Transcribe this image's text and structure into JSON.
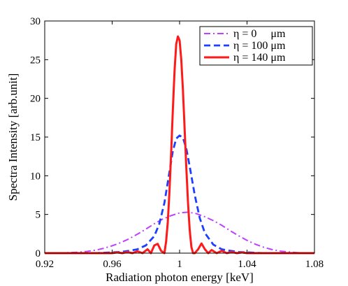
{
  "chart_data": {
    "type": "line",
    "title": "",
    "xlabel": "Radiation photon energy [keV]",
    "ylabel": "Spectra Intensity [arb.unit]",
    "xlim": [
      0.92,
      1.08
    ],
    "ylim": [
      0,
      30
    ],
    "x_ticks": [
      0.92,
      0.96,
      1.0,
      1.04,
      1.08
    ],
    "x_tick_labels": [
      "0.92",
      "0.96",
      "1",
      "1.04",
      "1.08"
    ],
    "y_ticks": [
      0,
      5,
      10,
      15,
      20,
      25,
      30
    ],
    "y_tick_labels": [
      "0",
      "5",
      "10",
      "15",
      "20",
      "25",
      "30"
    ],
    "grid": false,
    "legend_position": "top-right",
    "series": [
      {
        "name": "η = 0     μm",
        "color": "#bf40ff",
        "dash": "dashdot",
        "x": [
          0.92,
          0.93,
          0.94,
          0.945,
          0.95,
          0.955,
          0.96,
          0.965,
          0.97,
          0.975,
          0.98,
          0.985,
          0.99,
          0.995,
          1.0,
          1.005,
          1.01,
          1.015,
          1.02,
          1.025,
          1.03,
          1.035,
          1.04,
          1.045,
          1.05,
          1.055,
          1.06,
          1.07,
          1.08
        ],
        "y": [
          0.0,
          0.03,
          0.12,
          0.22,
          0.38,
          0.62,
          0.95,
          1.35,
          1.85,
          2.45,
          3.1,
          3.8,
          4.4,
          4.85,
          5.2,
          5.3,
          5.1,
          4.7,
          4.2,
          3.6,
          2.9,
          2.25,
          1.65,
          1.15,
          0.75,
          0.45,
          0.25,
          0.06,
          0.0
        ]
      },
      {
        "name": "η = 100 μm",
        "color": "#1f3fff",
        "dash": "dashed",
        "x": [
          0.92,
          0.95,
          0.96,
          0.965,
          0.97,
          0.975,
          0.98,
          0.985,
          0.988,
          0.991,
          0.994,
          0.996,
          0.998,
          1.0,
          1.002,
          1.004,
          1.006,
          1.009,
          1.012,
          1.015,
          1.02,
          1.025,
          1.03,
          1.035,
          1.04,
          1.05,
          1.08
        ],
        "y": [
          0.0,
          0.0,
          0.1,
          0.15,
          0.3,
          0.5,
          1.0,
          2.2,
          3.8,
          6.5,
          10.5,
          13.2,
          14.8,
          15.2,
          14.9,
          13.5,
          11.2,
          7.5,
          4.5,
          2.6,
          1.1,
          0.5,
          0.3,
          0.15,
          0.1,
          0.0,
          0.0
        ]
      },
      {
        "name": "η = 140 μm",
        "color": "#ff1a1a",
        "dash": "solid",
        "x": [
          0.92,
          0.96,
          0.963,
          0.966,
          0.969,
          0.972,
          0.975,
          0.978,
          0.981,
          0.983,
          0.985,
          0.987,
          0.989,
          0.991,
          0.992,
          0.993,
          0.994,
          0.995,
          0.996,
          0.997,
          0.998,
          0.999,
          1.0,
          1.001,
          1.002,
          1.003,
          1.004,
          1.005,
          1.006,
          1.007,
          1.008,
          1.009,
          1.011,
          1.013,
          1.015,
          1.017,
          1.019,
          1.022,
          1.025,
          1.028,
          1.031,
          1.034,
          1.037,
          1.04,
          1.08
        ],
        "y": [
          0.0,
          0.0,
          0.1,
          0.0,
          0.15,
          0.0,
          0.25,
          0.0,
          0.5,
          0.0,
          1.0,
          1.2,
          0.3,
          0.0,
          1.5,
          4.0,
          8.0,
          13.0,
          18.5,
          23.5,
          27.0,
          28.0,
          27.5,
          25.0,
          21.0,
          16.0,
          11.0,
          6.5,
          3.0,
          0.8,
          0.0,
          0.0,
          0.5,
          1.25,
          0.5,
          0.0,
          0.4,
          0.0,
          0.3,
          0.0,
          0.15,
          0.0,
          0.1,
          0.0,
          0.0
        ]
      }
    ]
  }
}
